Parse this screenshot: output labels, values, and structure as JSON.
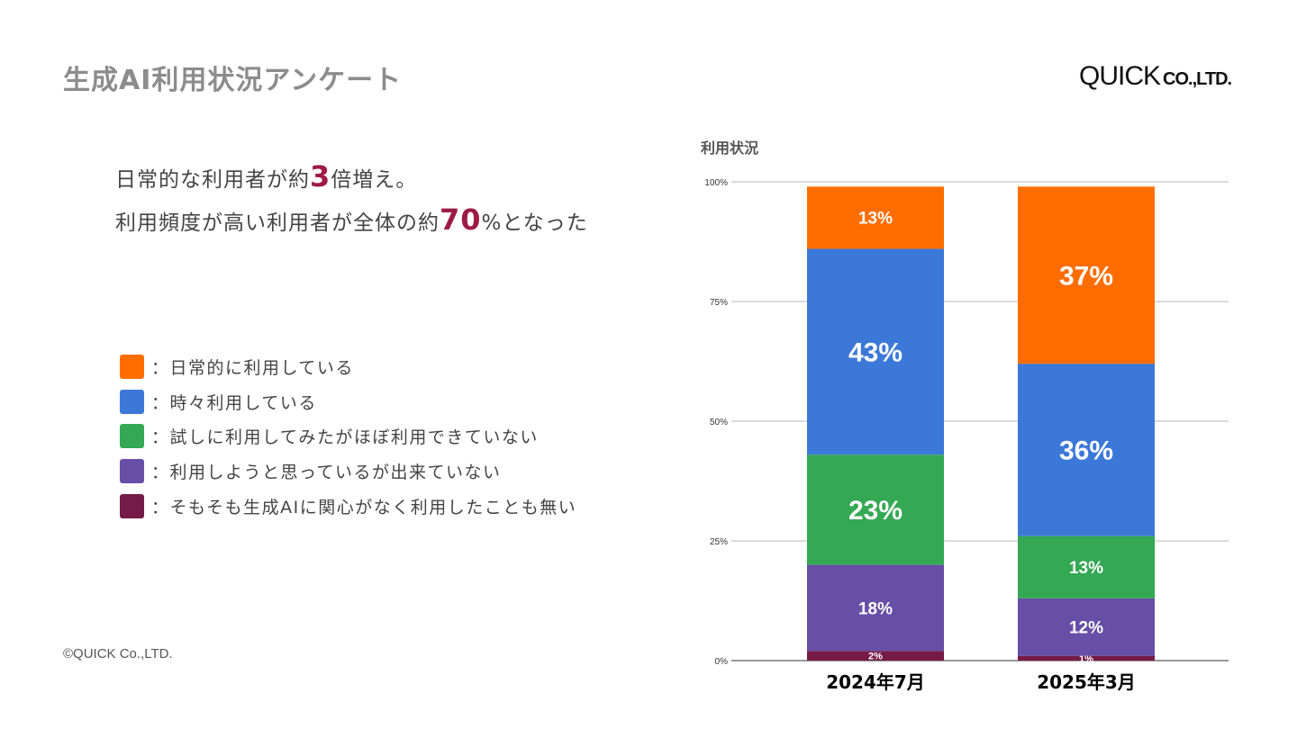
{
  "page": {
    "title": "生成AI利用状況アンケート",
    "logo_main": "QUICK",
    "logo_sub": "CO.,LTD.",
    "copyright": "©QUICK Co.,LTD."
  },
  "headline": {
    "line1_pre": "日常的な利用者が約",
    "line1_hl": "3",
    "line1_post": "倍増え。",
    "line2_pre": "利用頻度が高い利用者が全体の約",
    "line2_hl": "70",
    "line2_post": "%となった"
  },
  "legend": [
    {
      "label": "：日常的に利用している",
      "color": "#ff6d01"
    },
    {
      "label": "：時々利用している",
      "color": "#3c78d8"
    },
    {
      "label": "：試しに利用してみたがほぼ利用できていない",
      "color": "#34a853"
    },
    {
      "label": "：利用しようと思っているが出来ていない",
      "color": "#674ea7"
    },
    {
      "label": "：そもそも生成AIに関心がなく利用したことも無い",
      "color": "#741b47"
    }
  ],
  "chart_data": {
    "type": "bar",
    "stacked": true,
    "title": "利用状況",
    "categories": [
      "2024年7月",
      "2025年3月"
    ],
    "ylim": [
      0,
      100
    ],
    "yticks": [
      {
        "value": 0,
        "label": "0%"
      },
      {
        "value": 25,
        "label": "25%"
      },
      {
        "value": 50,
        "label": "50%"
      },
      {
        "value": 75,
        "label": "75%"
      },
      {
        "value": 100,
        "label": "100%"
      }
    ],
    "grid": true,
    "series": [
      {
        "color": "#741b47",
        "values": [
          2,
          1
        ],
        "labels": [
          "2%",
          "1%"
        ]
      },
      {
        "color": "#674ea7",
        "values": [
          18,
          12
        ],
        "labels": [
          "18%",
          "12%"
        ]
      },
      {
        "color": "#34a853",
        "values": [
          23,
          13
        ],
        "labels": [
          "23%",
          "13%"
        ]
      },
      {
        "color": "#3c78d8",
        "values": [
          43,
          36
        ],
        "labels": [
          "43%",
          "36%"
        ]
      },
      {
        "color": "#ff6d01",
        "values": [
          13,
          37
        ],
        "labels": [
          "13%",
          "37%"
        ]
      }
    ]
  }
}
